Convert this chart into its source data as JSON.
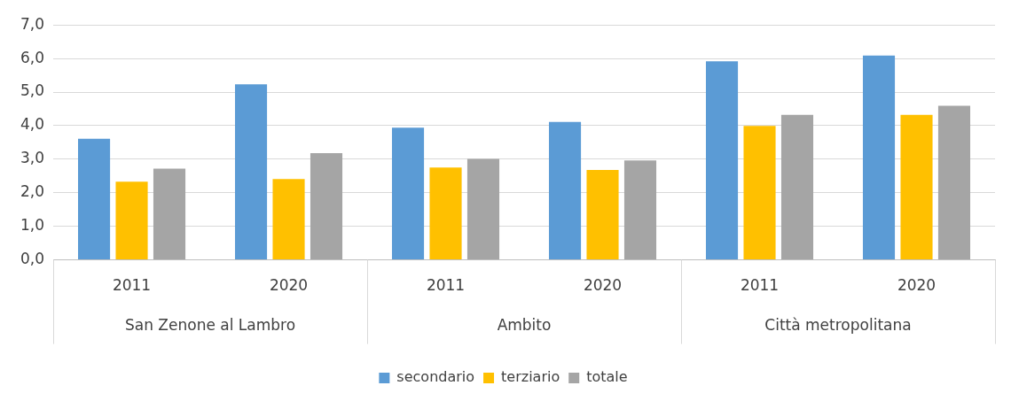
{
  "chart_data": {
    "type": "bar",
    "categories": [
      "2011",
      "2020",
      "2011",
      "2020",
      "2011",
      "2020"
    ],
    "series": [
      {
        "name": "secondario",
        "color": "#5b9bd5",
        "values": [
          3.61,
          5.23,
          3.94,
          4.11,
          5.92,
          6.09
        ]
      },
      {
        "name": "terziario",
        "color": "#ffc000",
        "values": [
          2.33,
          2.41,
          2.75,
          2.68,
          3.99,
          4.32
        ]
      },
      {
        "name": "totale",
        "color": "#a5a5a5",
        "values": [
          2.72,
          3.18,
          3.01,
          2.96,
          4.32,
          4.59
        ]
      }
    ],
    "annotations": [
      "San Zenone al Lambro",
      "Ambito",
      "Città metropolitana"
    ],
    "ylim": [
      0,
      7
    ],
    "yticks": [
      {
        "value": 0,
        "label": "0,0"
      },
      {
        "value": 1,
        "label": "1,0"
      },
      {
        "value": 2,
        "label": "2,0"
      },
      {
        "value": 3,
        "label": "3,0"
      },
      {
        "value": 4,
        "label": "4,0"
      },
      {
        "value": 5,
        "label": "5,0"
      },
      {
        "value": 6,
        "label": "6,0"
      },
      {
        "value": 7,
        "label": "7,0"
      }
    ],
    "grid": "y",
    "legend": "bottom"
  }
}
